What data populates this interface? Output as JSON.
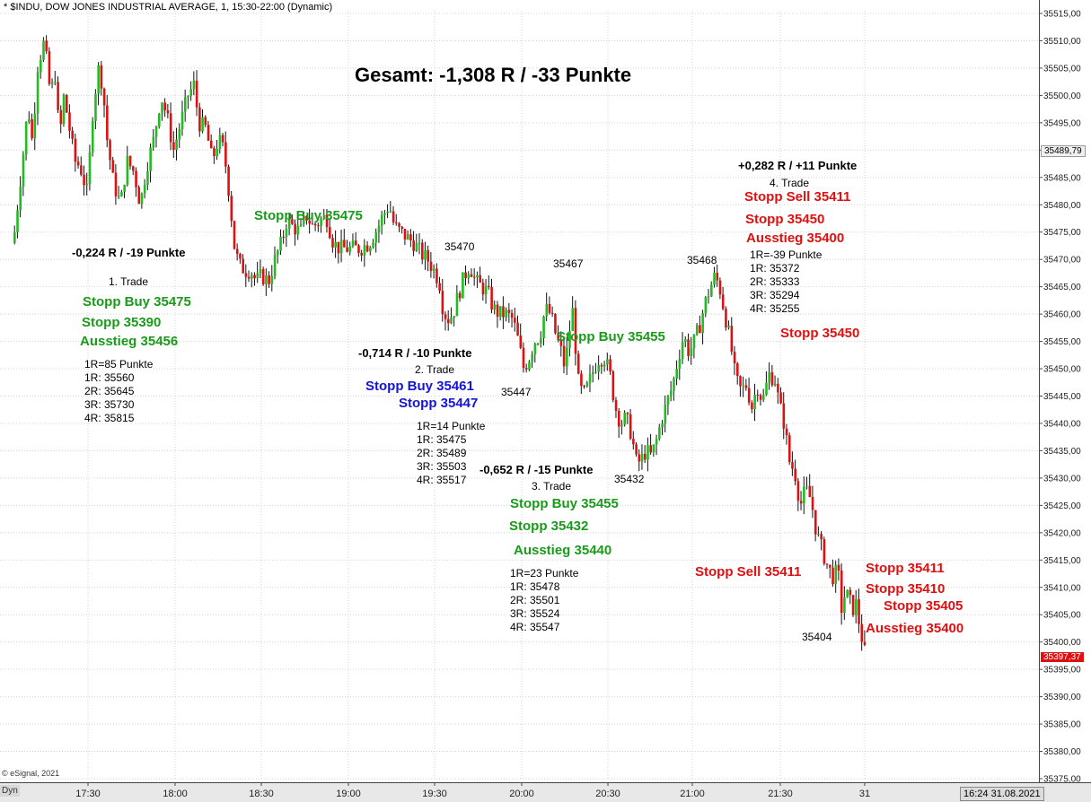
{
  "header": {
    "title": "* $INDU, DOW JONES INDUSTRIAL AVERAGE, 1, 15:30-22:00 (Dynamic)"
  },
  "total": {
    "text": "Gesamt: -1,308 R / -33 Punkte"
  },
  "footer": {
    "copyright": "© eSignal, 2021",
    "dyn": "Dyn",
    "datetime": "16:24 31.08.2021"
  },
  "axis_boxes": {
    "last_price": "35397,37",
    "ref_price": "35489,79"
  },
  "chart_data": {
    "type": "candlestick",
    "title": "",
    "xlabel": "",
    "ylabel": "",
    "x_ticks": [
      "17:30",
      "18:00",
      "18:30",
      "19:00",
      "19:30",
      "20:00",
      "20:30",
      "21:00",
      "21:30",
      "31"
    ],
    "y_ticks": [
      "35375,00",
      "35380,00",
      "35385,00",
      "35390,00",
      "35395,00",
      "35400,00",
      "35405,00",
      "35410,00",
      "35415,00",
      "35420,00",
      "35425,00",
      "35430,00",
      "35435,00",
      "35440,00",
      "35445,00",
      "35450,00",
      "35455,00",
      "35460,00",
      "35465,00",
      "35470,00",
      "35475,00",
      "35480,00",
      "35485,00",
      "35490,00",
      "35495,00",
      "35500,00",
      "35505,00",
      "35510,00",
      "35515,00"
    ],
    "ylim": [
      35375,
      35516
    ],
    "grid": true,
    "colors": {
      "up": "#22bb22",
      "down": "#dd1111"
    },
    "path": [
      [
        15,
        35475
      ],
      [
        25,
        35490
      ],
      [
        30,
        35498
      ],
      [
        35,
        35491
      ],
      [
        40,
        35505
      ],
      [
        48,
        35510
      ],
      [
        55,
        35500
      ],
      [
        60,
        35504
      ],
      [
        65,
        35492
      ],
      [
        70,
        35500
      ],
      [
        75,
        35495
      ],
      [
        82,
        35488
      ],
      [
        88,
        35487
      ],
      [
        96,
        35482
      ],
      [
        102,
        35497
      ],
      [
        108,
        35505
      ],
      [
        113,
        35502
      ],
      [
        118,
        35492
      ],
      [
        125,
        35484
      ],
      [
        133,
        35480
      ],
      [
        140,
        35488
      ],
      [
        148,
        35486
      ],
      [
        155,
        35480
      ],
      [
        162,
        35487
      ],
      [
        170,
        35492
      ],
      [
        178,
        35500
      ],
      [
        185,
        35496
      ],
      [
        192,
        35490
      ],
      [
        200,
        35495
      ],
      [
        208,
        35500
      ],
      [
        215,
        35502
      ],
      [
        220,
        35495
      ],
      [
        228,
        35494
      ],
      [
        235,
        35488
      ],
      [
        242,
        35492
      ],
      [
        248,
        35490
      ],
      [
        254,
        35482
      ],
      [
        260,
        35472
      ],
      [
        265,
        35469
      ],
      [
        272,
        35468
      ],
      [
        278,
        35468
      ],
      [
        284,
        35466
      ],
      [
        290,
        35467
      ],
      [
        298,
        35466
      ],
      [
        305,
        35470
      ],
      [
        312,
        35473
      ],
      [
        318,
        35477
      ],
      [
        325,
        35476
      ],
      [
        333,
        35475
      ],
      [
        340,
        35478
      ],
      [
        347,
        35476
      ],
      [
        355,
        35477
      ],
      [
        362,
        35478
      ],
      [
        370,
        35473
      ],
      [
        377,
        35472
      ],
      [
        384,
        35472
      ],
      [
        392,
        35472
      ],
      [
        400,
        35472
      ],
      [
        410,
        35473
      ],
      [
        420,
        35476
      ],
      [
        425,
        35478
      ],
      [
        432,
        35480
      ],
      [
        438,
        35476
      ],
      [
        445,
        35475
      ],
      [
        452,
        35474
      ],
      [
        460,
        35473
      ],
      [
        468,
        35471
      ],
      [
        475,
        35470
      ],
      [
        482,
        35468
      ],
      [
        488,
        35466
      ],
      [
        492,
        35461
      ],
      [
        497,
        35459
      ],
      [
        503,
        35460
      ],
      [
        510,
        35464
      ],
      [
        516,
        35467
      ],
      [
        522,
        35469
      ],
      [
        528,
        35466
      ],
      [
        535,
        35465
      ],
      [
        542,
        35464
      ],
      [
        548,
        35461
      ],
      [
        555,
        35460
      ],
      [
        562,
        35460
      ],
      [
        570,
        35459
      ],
      [
        576,
        35455
      ],
      [
        582,
        35450
      ],
      [
        588,
        35452
      ],
      [
        594,
        35455
      ],
      [
        600,
        35456
      ],
      [
        606,
        35461
      ],
      [
        612,
        35460
      ],
      [
        618,
        35456
      ],
      [
        624,
        35453
      ],
      [
        628,
        35450
      ],
      [
        632,
        35456
      ],
      [
        637,
        35461
      ],
      [
        642,
        35448
      ],
      [
        648,
        35445
      ],
      [
        654,
        35447
      ],
      [
        660,
        35450
      ],
      [
        666,
        35452
      ],
      [
        672,
        35452
      ],
      [
        678,
        35449
      ],
      [
        684,
        35443
      ],
      [
        690,
        35440
      ],
      [
        696,
        35441
      ],
      [
        702,
        35438
      ],
      [
        707,
        35433
      ],
      [
        712,
        35433
      ],
      [
        718,
        35435
      ],
      [
        724,
        35434
      ],
      [
        730,
        35437
      ],
      [
        736,
        35441
      ],
      [
        742,
        35444
      ],
      [
        748,
        35447
      ],
      [
        754,
        35452
      ],
      [
        760,
        35456
      ],
      [
        766,
        35453
      ],
      [
        772,
        35455
      ],
      [
        778,
        35458
      ],
      [
        784,
        35462
      ],
      [
        790,
        35465
      ],
      [
        795,
        35467
      ],
      [
        800,
        35465
      ],
      [
        806,
        35460
      ],
      [
        812,
        35455
      ],
      [
        818,
        35448
      ],
      [
        824,
        35446
      ],
      [
        830,
        35447
      ],
      [
        836,
        35443
      ],
      [
        842,
        35447
      ],
      [
        848,
        35444
      ],
      [
        855,
        35449
      ],
      [
        862,
        35448
      ],
      [
        866,
        35444
      ],
      [
        872,
        35440
      ],
      [
        878,
        35433
      ],
      [
        884,
        35431
      ],
      [
        890,
        35425
      ],
      [
        896,
        35428
      ],
      [
        902,
        35426
      ],
      [
        908,
        35420
      ],
      [
        914,
        35417
      ],
      [
        920,
        35414
      ],
      [
        926,
        35412
      ],
      [
        932,
        35413
      ],
      [
        936,
        35406
      ],
      [
        940,
        35409
      ],
      [
        944,
        35408
      ],
      [
        948,
        35406
      ],
      [
        952,
        35407
      ],
      [
        957,
        35402
      ],
      [
        963,
        35397
      ]
    ],
    "annotations": [
      {
        "text": "Stopp Buy 35475",
        "color": "green"
      },
      {
        "text": "-0,224 R / -19 Punkte"
      },
      {
        "text": "1. Trade"
      },
      {
        "text": "Stopp Buy 35475",
        "color": "green"
      },
      {
        "text": "Stopp 35390",
        "color": "green"
      },
      {
        "text": "Ausstieg 35456",
        "color": "green"
      },
      {
        "text": "1R=85 Punkte"
      },
      {
        "text": "1R: 35560"
      },
      {
        "text": "2R: 35645"
      },
      {
        "text": "3R: 35730"
      },
      {
        "text": "4R: 35815"
      },
      {
        "text": "35470"
      },
      {
        "text": "-0,714 R / -10 Punkte"
      },
      {
        "text": "2. Trade"
      },
      {
        "text": "Stopp Buy 35461",
        "color": "blue"
      },
      {
        "text": "Stopp 35447",
        "color": "blue"
      },
      {
        "text": "35447"
      },
      {
        "text": "1R=14 Punkte"
      },
      {
        "text": "1R: 35475"
      },
      {
        "text": "2R: 35489"
      },
      {
        "text": "3R: 35503"
      },
      {
        "text": "4R: 35517"
      },
      {
        "text": "35467"
      },
      {
        "text": "Stopp Buy 35455",
        "color": "green"
      },
      {
        "text": "-0,652 R / -15 Punkte"
      },
      {
        "text": "3. Trade"
      },
      {
        "text": "35432"
      },
      {
        "text": "Stopp Buy 35455",
        "color": "green"
      },
      {
        "text": "Stopp 35432",
        "color": "green"
      },
      {
        "text": "Ausstieg 35440",
        "color": "green"
      },
      {
        "text": "1R=23 Punkte"
      },
      {
        "text": "1R: 35478"
      },
      {
        "text": "2R: 35501"
      },
      {
        "text": "3R: 35524"
      },
      {
        "text": "4R: 35547"
      },
      {
        "text": "35468"
      },
      {
        "text": "+0,282 R / +11 Punkte"
      },
      {
        "text": "4. Trade"
      },
      {
        "text": "Stopp Sell 35411",
        "color": "red"
      },
      {
        "text": "Stopp 35450",
        "color": "red"
      },
      {
        "text": "Ausstieg 35400",
        "color": "red"
      },
      {
        "text": "1R=-39 Punkte"
      },
      {
        "text": "1R: 35372"
      },
      {
        "text": "2R: 35333"
      },
      {
        "text": "3R: 35294"
      },
      {
        "text": "4R: 35255"
      },
      {
        "text": "Stopp 35450",
        "color": "red"
      },
      {
        "text": "Stopp Sell 35411",
        "color": "red"
      },
      {
        "text": "Stopp 35411",
        "color": "red"
      },
      {
        "text": "Stopp 35410",
        "color": "red"
      },
      {
        "text": "Stopp 35405",
        "color": "red"
      },
      {
        "text": "Ausstieg 35400",
        "color": "red"
      },
      {
        "text": "35404"
      }
    ]
  }
}
